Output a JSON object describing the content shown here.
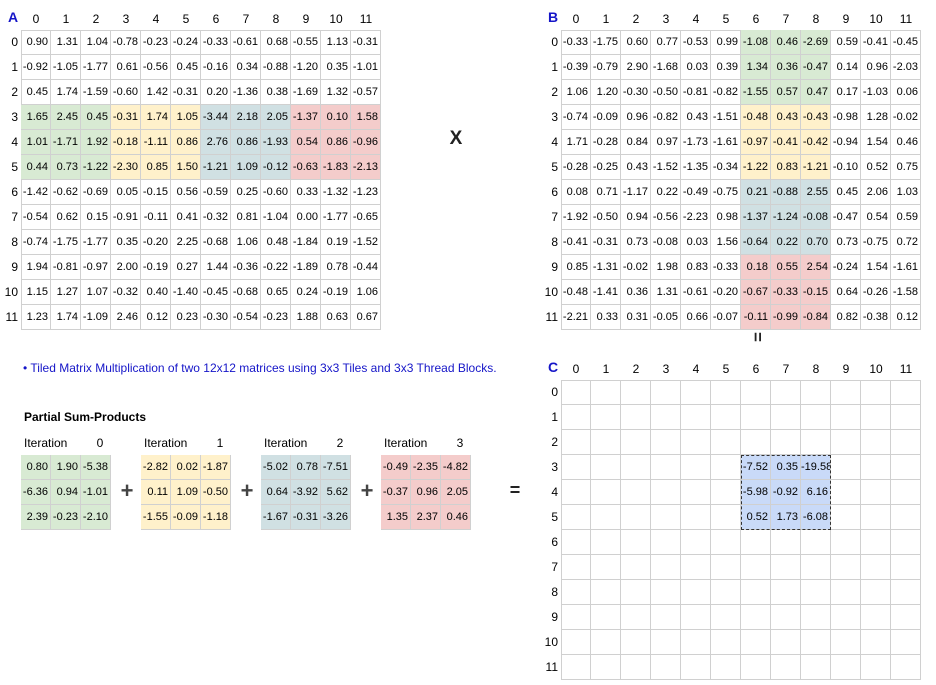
{
  "labels": {
    "A": "A",
    "B": "B",
    "C": "C",
    "times": "X",
    "equals_top": "=",
    "plus": "+",
    "equals": "="
  },
  "note": "• Tiled Matrix Multiplication of two 12x12 matrices using 3x3 Tiles and 3x3 Thread Blocks.",
  "partial_heading": "Partial Sum-Products",
  "iteration_label": "Iteration",
  "indices": [
    "0",
    "1",
    "2",
    "3",
    "4",
    "5",
    "6",
    "7",
    "8",
    "9",
    "10",
    "11"
  ],
  "colors": {
    "green": "#d8ead3",
    "yellow": "#fff1cb",
    "blue_gray": "#d0e0e3",
    "red": "#f4cccb",
    "result_blue": "#c9daf8",
    "label_blue": "#1515c8"
  },
  "matrix_A": [
    [
      "0.90",
      "1.31",
      "1.04",
      "-0.78",
      "-0.23",
      "-0.24",
      "-0.33",
      "-0.61",
      "0.68",
      "-0.55",
      "1.13",
      "-0.31"
    ],
    [
      "-0.92",
      "-1.05",
      "-1.77",
      "0.61",
      "-0.56",
      "0.45",
      "-0.16",
      "0.34",
      "-0.88",
      "-1.20",
      "0.35",
      "-1.01"
    ],
    [
      "0.45",
      "1.74",
      "-1.59",
      "-0.60",
      "1.42",
      "-0.31",
      "0.20",
      "-1.36",
      "0.38",
      "-1.69",
      "1.32",
      "-0.57"
    ],
    [
      "1.65",
      "2.45",
      "0.45",
      "-0.31",
      "1.74",
      "1.05",
      "-3.44",
      "2.18",
      "2.05",
      "-1.37",
      "0.10",
      "1.58"
    ],
    [
      "1.01",
      "-1.71",
      "1.92",
      "-0.18",
      "-1.11",
      "0.86",
      "2.76",
      "0.86",
      "-1.93",
      "0.54",
      "0.86",
      "-0.96"
    ],
    [
      "0.44",
      "0.73",
      "-1.22",
      "-2.30",
      "0.85",
      "1.50",
      "-1.21",
      "1.09",
      "-0.12",
      "-0.63",
      "-1.83",
      "-2.13"
    ],
    [
      "-1.42",
      "-0.62",
      "-0.69",
      "0.05",
      "-0.15",
      "0.56",
      "-0.59",
      "0.25",
      "-0.60",
      "0.33",
      "-1.32",
      "-1.23"
    ],
    [
      "-0.54",
      "0.62",
      "0.15",
      "-0.91",
      "-0.11",
      "0.41",
      "-0.32",
      "0.81",
      "-1.04",
      "0.00",
      "-1.77",
      "-0.65"
    ],
    [
      "-0.74",
      "-1.75",
      "-1.77",
      "0.35",
      "-0.20",
      "2.25",
      "-0.68",
      "1.06",
      "0.48",
      "-1.84",
      "0.19",
      "-1.52"
    ],
    [
      "1.94",
      "-0.81",
      "-0.97",
      "2.00",
      "-0.19",
      "0.27",
      "1.44",
      "-0.36",
      "-0.22",
      "-1.89",
      "0.78",
      "-0.44"
    ],
    [
      "1.15",
      "1.27",
      "1.07",
      "-0.32",
      "0.40",
      "-1.40",
      "-0.45",
      "-0.68",
      "0.65",
      "0.24",
      "-0.19",
      "1.06"
    ],
    [
      "1.23",
      "1.74",
      "-1.09",
      "2.46",
      "0.12",
      "0.23",
      "-0.30",
      "-0.54",
      "-0.23",
      "1.88",
      "0.63",
      "0.67"
    ]
  ],
  "matrix_B": [
    [
      "-0.33",
      "-1.75",
      "0.60",
      "0.77",
      "-0.53",
      "0.99",
      "-1.08",
      "0.46",
      "-2.69",
      "0.59",
      "-0.41",
      "-0.45"
    ],
    [
      "-0.39",
      "-0.79",
      "2.90",
      "-1.68",
      "0.03",
      "0.39",
      "1.34",
      "0.36",
      "-0.47",
      "0.14",
      "0.96",
      "-2.03"
    ],
    [
      "1.06",
      "1.20",
      "-0.30",
      "-0.50",
      "-0.81",
      "-0.82",
      "-1.55",
      "0.57",
      "0.47",
      "0.17",
      "-1.03",
      "0.06"
    ],
    [
      "-0.74",
      "-0.09",
      "0.96",
      "-0.82",
      "0.43",
      "-1.51",
      "-0.48",
      "0.43",
      "-0.43",
      "-0.98",
      "1.28",
      "-0.02"
    ],
    [
      "1.71",
      "-0.28",
      "0.84",
      "0.97",
      "-1.73",
      "-1.61",
      "-0.97",
      "-0.41",
      "-0.42",
      "-0.94",
      "1.54",
      "0.46"
    ],
    [
      "-0.28",
      "-0.25",
      "0.43",
      "-1.52",
      "-1.35",
      "-0.34",
      "-1.22",
      "0.83",
      "-1.21",
      "-0.10",
      "0.52",
      "0.75"
    ],
    [
      "0.08",
      "0.71",
      "-1.17",
      "0.22",
      "-0.49",
      "-0.75",
      "0.21",
      "-0.88",
      "2.55",
      "0.45",
      "2.06",
      "1.03"
    ],
    [
      "-1.92",
      "-0.50",
      "0.94",
      "-0.56",
      "-2.23",
      "0.98",
      "-1.37",
      "-1.24",
      "-0.08",
      "-0.47",
      "0.54",
      "0.59"
    ],
    [
      "-0.41",
      "-0.31",
      "0.73",
      "-0.08",
      "0.03",
      "1.56",
      "-0.64",
      "0.22",
      "0.70",
      "0.73",
      "-0.75",
      "0.72"
    ],
    [
      "0.85",
      "-1.31",
      "-0.02",
      "1.98",
      "0.83",
      "-0.33",
      "0.18",
      "0.55",
      "2.54",
      "-0.24",
      "1.54",
      "-1.61"
    ],
    [
      "-0.48",
      "-1.41",
      "0.36",
      "1.31",
      "-0.61",
      "-0.20",
      "-0.67",
      "-0.33",
      "-0.15",
      "0.64",
      "-0.26",
      "-1.58"
    ],
    [
      "-2.21",
      "0.33",
      "0.31",
      "-0.05",
      "0.66",
      "-0.07",
      "-0.11",
      "-0.99",
      "-0.84",
      "0.82",
      "-0.38",
      "0.12"
    ]
  ],
  "matrix_C_values": [
    [
      "-7.52",
      "0.35",
      "-19.58"
    ],
    [
      "-5.98",
      "-0.92",
      "6.16"
    ],
    [
      "0.52",
      "1.73",
      "-6.08"
    ]
  ],
  "partials": [
    {
      "index": "0",
      "color": "g",
      "values": [
        [
          "0.80",
          "1.90",
          "-5.38"
        ],
        [
          "-6.36",
          "0.94",
          "-1.01"
        ],
        [
          "2.39",
          "-0.23",
          "-2.10"
        ]
      ]
    },
    {
      "index": "1",
      "color": "y",
      "values": [
        [
          "-2.82",
          "0.02",
          "-1.87"
        ],
        [
          "0.11",
          "1.09",
          "-0.50"
        ],
        [
          "-1.55",
          "-0.09",
          "-1.18"
        ]
      ]
    },
    {
      "index": "2",
      "color": "b",
      "values": [
        [
          "-5.02",
          "0.78",
          "-7.51"
        ],
        [
          "0.64",
          "-3.92",
          "5.62"
        ],
        [
          "-1.67",
          "-0.31",
          "-3.26"
        ]
      ]
    },
    {
      "index": "3",
      "color": "r",
      "values": [
        [
          "-0.49",
          "-2.35",
          "-4.82"
        ],
        [
          "-0.37",
          "0.96",
          "2.05"
        ],
        [
          "1.35",
          "2.37",
          "0.46"
        ]
      ]
    }
  ]
}
